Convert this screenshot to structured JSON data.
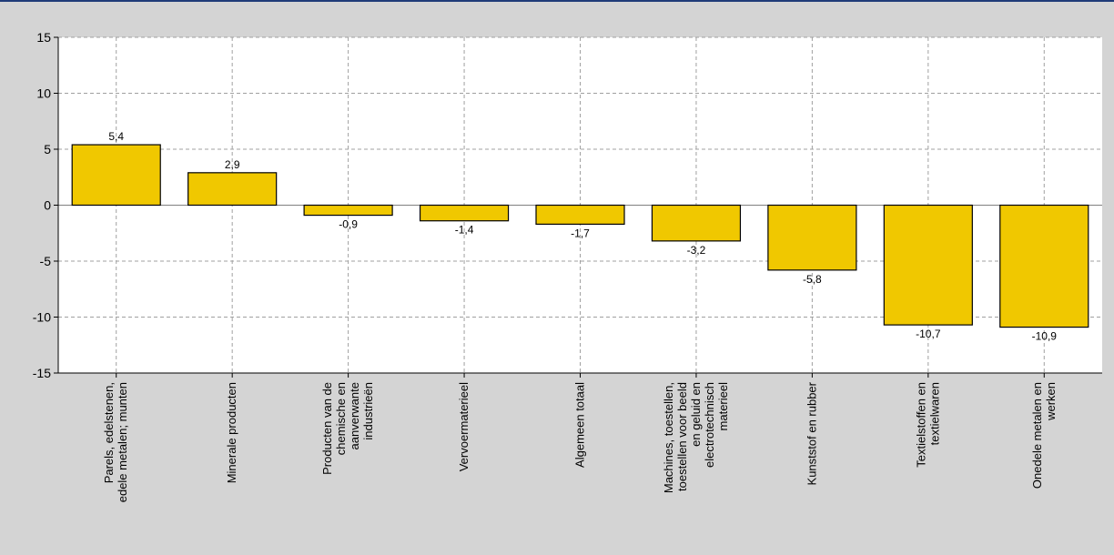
{
  "chart_data": {
    "type": "bar",
    "categories": [
      [
        "Parels, edelstenen,",
        "edele metalen; munten"
      ],
      [
        "Minerale producten"
      ],
      [
        "Producten van de",
        "chemische en",
        "aanverwante",
        "industrieën"
      ],
      [
        "Vervoermaterieel"
      ],
      [
        "Algemeen totaal"
      ],
      [
        "Machines, toestellen,",
        "toestellen voor beeld",
        "en geluid en",
        "electrotechnisch",
        "materieel"
      ],
      [
        "Kunststof en rubber"
      ],
      [
        "Textielstoffen en",
        "textielwaren"
      ],
      [
        "Onedele metalen en",
        "werken"
      ]
    ],
    "values": [
      5.4,
      2.9,
      -0.9,
      -1.4,
      -1.7,
      -3.2,
      -5.8,
      -10.7,
      -10.9
    ],
    "value_labels": [
      "5,4",
      "2,9",
      "-0,9",
      "-1,4",
      "-1,7",
      "-3,2",
      "-5,8",
      "-10,7",
      "-10,9"
    ],
    "ylim": [
      -15,
      15
    ],
    "yticks": [
      15,
      10,
      5,
      0,
      -5,
      -10,
      -15
    ],
    "ytick_labels": [
      "15",
      "10",
      "5",
      "0",
      "-5",
      "-10",
      "-15"
    ],
    "grid": true,
    "bar_color": "#f0c800",
    "bar_stroke": "#000000",
    "background_color": "#ffffff",
    "frame_color": "#d4d4d4"
  }
}
